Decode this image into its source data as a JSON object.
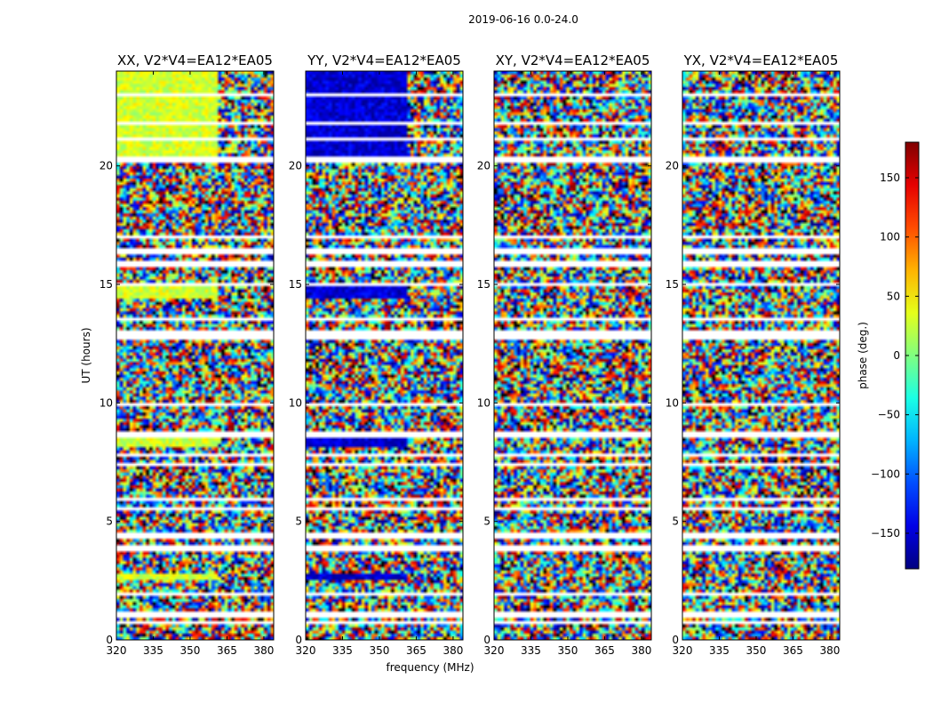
{
  "chart_data": {
    "type": "heatmap",
    "suptitle": "2019-06-16 0.0-24.0",
    "xlabel": "frequency (MHz)",
    "ylabel": "UT (hours)",
    "xlim": [
      320,
      384
    ],
    "ylim": [
      0,
      24
    ],
    "xticks": [
      320,
      335,
      350,
      365,
      380
    ],
    "yticks": [
      0,
      5,
      10,
      15,
      20
    ],
    "colorbar": {
      "label": "phase (deg.)",
      "range": [
        -180,
        180
      ],
      "ticks": [
        150,
        100,
        50,
        0,
        -50,
        -100,
        -150
      ],
      "tick_labels": [
        "150",
        "100",
        "50",
        "0",
        "−50",
        "−100",
        "−150"
      ],
      "colormap": "jet"
    },
    "panels": [
      {
        "title": "XX, V2*V4=EA12*EA05",
        "coherent_phase_deg": 30,
        "coherent_until_mhz": 361
      },
      {
        "title": "YY, V2*V4=EA12*EA05",
        "coherent_phase_deg": -150,
        "coherent_until_mhz": 361
      },
      {
        "title": "XY, V2*V4=EA12*EA05",
        "coherent_phase_deg": null,
        "coherent_until_mhz": null
      },
      {
        "title": "YX, V2*V4=EA12*EA05",
        "coherent_phase_deg": null,
        "coherent_until_mhz": null
      }
    ],
    "coherent_ut_ranges": [
      [
        20.2,
        24.0
      ],
      [
        14.4,
        15.0
      ],
      [
        8.2,
        8.6
      ],
      [
        2.5,
        2.8
      ]
    ],
    "flagged_ut_ranges": [
      [
        0.7,
        0.85
      ],
      [
        1.0,
        1.15
      ],
      [
        1.9,
        2.0
      ],
      [
        3.8,
        4.05
      ],
      [
        4.3,
        4.6
      ],
      [
        5.5,
        5.6
      ],
      [
        5.9,
        6.0
      ],
      [
        7.3,
        7.4
      ],
      [
        7.8,
        7.9
      ],
      [
        8.5,
        8.8
      ],
      [
        9.3,
        9.4
      ],
      [
        9.9,
        10.0
      ],
      [
        12.7,
        13.1
      ],
      [
        13.5,
        13.6
      ],
      [
        14.9,
        15.05
      ],
      [
        15.8,
        15.95
      ],
      [
        16.3,
        16.5
      ],
      [
        16.9,
        17.05
      ],
      [
        20.2,
        20.45
      ],
      [
        21.1,
        21.25
      ],
      [
        21.8,
        21.9
      ],
      [
        23.0,
        23.1
      ]
    ]
  }
}
